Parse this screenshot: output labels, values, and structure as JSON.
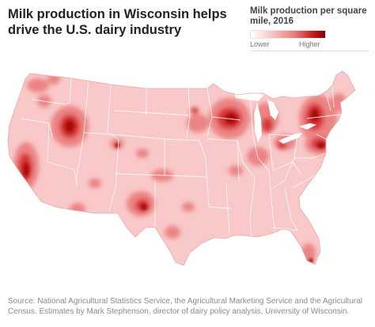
{
  "header": {
    "title": "Milk production in Wisconsin helps drive the U.S. dairy industry"
  },
  "legend": {
    "title": "Milk production per square mile, 2016",
    "low_label": "Lower",
    "high_label": "Higher"
  },
  "map": {
    "region": "contiguous-united-states",
    "colors": {
      "base": "#f9c8c8",
      "border": "#ffffff",
      "medium": "#ec7e7e",
      "high": "#d63535",
      "highest": "#a80d0d"
    }
  },
  "footer": {
    "source": "Source: National Agricultural Statistics Service, the Agricultural Marketing Service and the Agricultural Census. Estimates by Mark Stephenson, director of dairy policy analysis, University of Wisconsin."
  }
}
